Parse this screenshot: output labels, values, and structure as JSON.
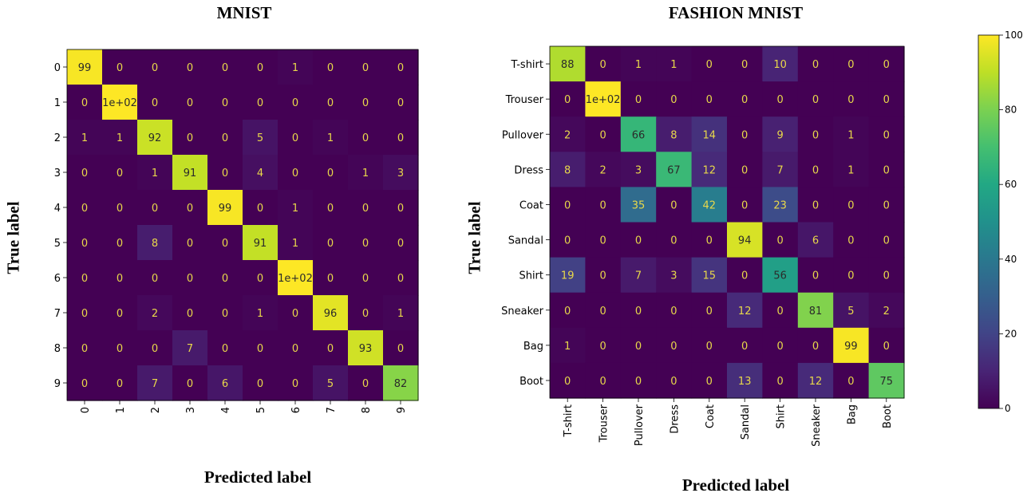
{
  "chart_data": [
    {
      "type": "heatmap",
      "title": "MNIST",
      "xlabel": "Predicted label",
      "ylabel": "True label",
      "categories": [
        "0",
        "1",
        "2",
        "3",
        "4",
        "5",
        "6",
        "7",
        "8",
        "9"
      ],
      "values": [
        [
          99,
          0,
          0,
          0,
          0,
          0,
          1,
          0,
          0,
          0
        ],
        [
          0,
          100,
          0,
          0,
          0,
          0,
          0,
          0,
          0,
          0
        ],
        [
          1,
          1,
          92,
          0,
          0,
          5,
          0,
          1,
          0,
          0
        ],
        [
          0,
          0,
          1,
          91,
          0,
          4,
          0,
          0,
          1,
          3
        ],
        [
          0,
          0,
          0,
          0,
          99,
          0,
          1,
          0,
          0,
          0
        ],
        [
          0,
          0,
          8,
          0,
          0,
          91,
          1,
          0,
          0,
          0
        ],
        [
          0,
          0,
          0,
          0,
          0,
          0,
          100,
          0,
          0,
          0
        ],
        [
          0,
          0,
          2,
          0,
          0,
          1,
          0,
          96,
          0,
          1
        ],
        [
          0,
          0,
          0,
          7,
          0,
          0,
          0,
          0,
          93,
          0
        ],
        [
          0,
          0,
          7,
          0,
          6,
          0,
          0,
          5,
          0,
          82
        ]
      ],
      "cell_labels": [
        [
          "99",
          "0",
          "0",
          "0",
          "0",
          "0",
          "1",
          "0",
          "0",
          "0"
        ],
        [
          "0",
          "1e+02",
          "0",
          "0",
          "0",
          "0",
          "0",
          "0",
          "0",
          "0"
        ],
        [
          "1",
          "1",
          "92",
          "0",
          "0",
          "5",
          "0",
          "1",
          "0",
          "0"
        ],
        [
          "0",
          "0",
          "1",
          "91",
          "0",
          "4",
          "0",
          "0",
          "1",
          "3"
        ],
        [
          "0",
          "0",
          "0",
          "0",
          "99",
          "0",
          "1",
          "0",
          "0",
          "0"
        ],
        [
          "0",
          "0",
          "8",
          "0",
          "0",
          "91",
          "1",
          "0",
          "0",
          "0"
        ],
        [
          "0",
          "0",
          "0",
          "0",
          "0",
          "0",
          "1e+02",
          "0",
          "0",
          "0"
        ],
        [
          "0",
          "0",
          "2",
          "0",
          "0",
          "1",
          "0",
          "96",
          "0",
          "1"
        ],
        [
          "0",
          "0",
          "0",
          "7",
          "0",
          "0",
          "0",
          "0",
          "93",
          "0"
        ],
        [
          "0",
          "0",
          "7",
          "0",
          "6",
          "0",
          "0",
          "5",
          "0",
          "82"
        ]
      ]
    },
    {
      "type": "heatmap",
      "title": "FASHION MNIST",
      "xlabel": "Predicted label",
      "ylabel": "True label",
      "categories": [
        "T-shirt",
        "Trouser",
        "Pullover",
        "Dress",
        "Coat",
        "Sandal",
        "Shirt",
        "Sneaker",
        "Bag",
        "Boot"
      ],
      "values": [
        [
          88,
          0,
          1,
          1,
          0,
          0,
          10,
          0,
          0,
          0
        ],
        [
          0,
          100,
          0,
          0,
          0,
          0,
          0,
          0,
          0,
          0
        ],
        [
          2,
          0,
          66,
          8,
          14,
          0,
          9,
          0,
          1,
          0
        ],
        [
          8,
          2,
          3,
          67,
          12,
          0,
          7,
          0,
          1,
          0
        ],
        [
          0,
          0,
          35,
          0,
          42,
          0,
          23,
          0,
          0,
          0
        ],
        [
          0,
          0,
          0,
          0,
          0,
          94,
          0,
          6,
          0,
          0
        ],
        [
          19,
          0,
          7,
          3,
          15,
          0,
          56,
          0,
          0,
          0
        ],
        [
          0,
          0,
          0,
          0,
          0,
          12,
          0,
          81,
          5,
          2
        ],
        [
          1,
          0,
          0,
          0,
          0,
          0,
          0,
          0,
          99,
          0
        ],
        [
          0,
          0,
          0,
          0,
          0,
          13,
          0,
          12,
          0,
          75
        ]
      ],
      "cell_labels": [
        [
          "88",
          "0",
          "1",
          "1",
          "0",
          "0",
          "10",
          "0",
          "0",
          "0"
        ],
        [
          "0",
          "1e+02",
          "0",
          "0",
          "0",
          "0",
          "0",
          "0",
          "0",
          "0"
        ],
        [
          "2",
          "0",
          "66",
          "8",
          "14",
          "0",
          "9",
          "0",
          "1",
          "0"
        ],
        [
          "8",
          "2",
          "3",
          "67",
          "12",
          "0",
          "7",
          "0",
          "1",
          "0"
        ],
        [
          "0",
          "0",
          "35",
          "0",
          "42",
          "0",
          "23",
          "0",
          "0",
          "0"
        ],
        [
          "0",
          "0",
          "0",
          "0",
          "0",
          "94",
          "0",
          "6",
          "0",
          "0"
        ],
        [
          "19",
          "0",
          "7",
          "3",
          "15",
          "0",
          "56",
          "0",
          "0",
          "0"
        ],
        [
          "0",
          "0",
          "0",
          "0",
          "0",
          "12",
          "0",
          "81",
          "5",
          "2"
        ],
        [
          "1",
          "0",
          "0",
          "0",
          "0",
          "0",
          "0",
          "0",
          "99",
          "0"
        ],
        [
          "0",
          "0",
          "0",
          "0",
          "0",
          "13",
          "0",
          "12",
          "0",
          "75"
        ]
      ]
    }
  ],
  "colorbar": {
    "range": [
      0,
      100
    ],
    "ticks": [
      "0",
      "20",
      "40",
      "60",
      "80",
      "100"
    ],
    "colormap": "viridis"
  }
}
